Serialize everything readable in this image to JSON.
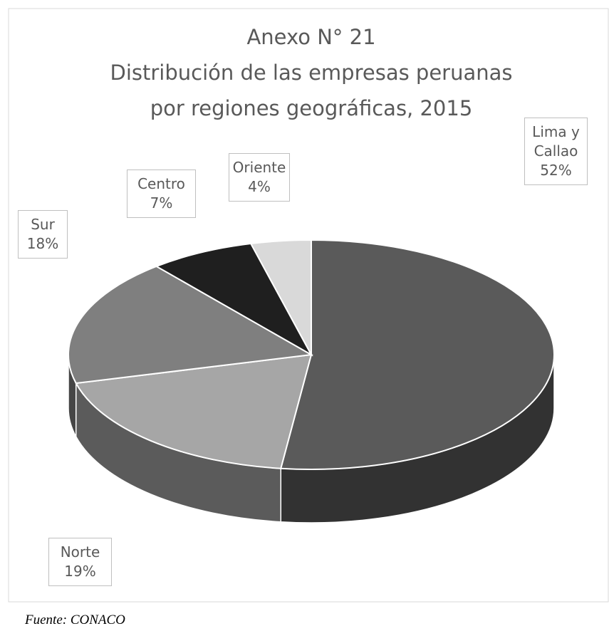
{
  "chart_data": {
    "type": "pie3d",
    "title": [
      "Anexo N° 21",
      "Distribución de las empresas peruanas",
      "por regiones geográficas, 2015"
    ],
    "categories": [
      "Lima y Callao",
      "Norte",
      "Sur",
      "Centro",
      "Oriente"
    ],
    "values": [
      52,
      19,
      18,
      7,
      4
    ],
    "value_labels": [
      "52%",
      "19%",
      "18%",
      "7%",
      "4%"
    ],
    "colors": [
      "#5a5a5a",
      "#a6a6a6",
      "#7f7f7f",
      "#1f1f1f",
      "#d9d9d9"
    ],
    "source": "Fuente: CONACO"
  }
}
